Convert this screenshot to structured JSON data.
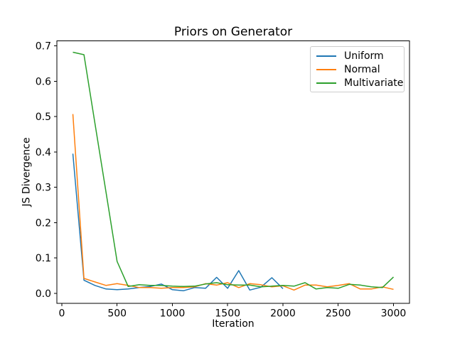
{
  "chart_data": {
    "type": "line",
    "title": "Priors on Generator",
    "xlabel": "Iteration",
    "ylabel": "JS Divergence",
    "grid": false,
    "xlim": [
      -45,
      3145
    ],
    "ylim": [
      -0.029,
      0.714
    ],
    "xticks": [
      0,
      500,
      1000,
      1500,
      2000,
      2500,
      3000
    ],
    "yticks": [
      0.0,
      0.1,
      0.2,
      0.3,
      0.4,
      0.5,
      0.6,
      0.7
    ],
    "legend": {
      "position": "upper right",
      "entries": [
        "Uniform",
        "Normal",
        "Multivariate"
      ]
    },
    "series": [
      {
        "name": "Uniform",
        "color": "#1f77b4",
        "x": [
          100,
          200,
          300,
          400,
          500,
          600,
          700,
          800,
          900,
          1000,
          1100,
          1200,
          1300,
          1400,
          1500,
          1600,
          1700,
          1800,
          1900,
          2000
        ],
        "y": [
          0.395,
          0.037,
          0.022,
          0.012,
          0.01,
          0.012,
          0.016,
          0.019,
          0.026,
          0.01,
          0.007,
          0.016,
          0.014,
          0.045,
          0.014,
          0.064,
          0.009,
          0.017,
          0.044,
          0.013
        ]
      },
      {
        "name": "Normal",
        "color": "#ff7f0e",
        "x": [
          100,
          200,
          300,
          400,
          500,
          600,
          700,
          800,
          900,
          1000,
          1100,
          1200,
          1300,
          1400,
          1500,
          1600,
          1700,
          1800,
          1900,
          2000,
          2100,
          2200,
          2300,
          2400,
          2500,
          2600,
          2700,
          2800,
          2900,
          3000
        ],
        "y": [
          0.507,
          0.042,
          0.032,
          0.022,
          0.027,
          0.022,
          0.016,
          0.016,
          0.014,
          0.016,
          0.016,
          0.018,
          0.027,
          0.023,
          0.03,
          0.016,
          0.027,
          0.024,
          0.018,
          0.021,
          0.009,
          0.023,
          0.023,
          0.018,
          0.022,
          0.027,
          0.012,
          0.012,
          0.018,
          0.011
        ]
      },
      {
        "name": "Multivariate",
        "color": "#2ca02c",
        "x": [
          100,
          200,
          300,
          400,
          500,
          600,
          700,
          800,
          900,
          1000,
          1100,
          1200,
          1300,
          1400,
          1500,
          1600,
          1700,
          1800,
          1900,
          2000,
          2100,
          2200,
          2300,
          2400,
          2500,
          2600,
          2700,
          2800,
          2900,
          3000
        ],
        "y": [
          0.682,
          0.675,
          0.48,
          0.285,
          0.09,
          0.019,
          0.024,
          0.022,
          0.022,
          0.02,
          0.019,
          0.02,
          0.026,
          0.03,
          0.024,
          0.023,
          0.023,
          0.018,
          0.02,
          0.022,
          0.02,
          0.03,
          0.012,
          0.016,
          0.014,
          0.025,
          0.023,
          0.018,
          0.016,
          0.046
        ]
      }
    ]
  }
}
